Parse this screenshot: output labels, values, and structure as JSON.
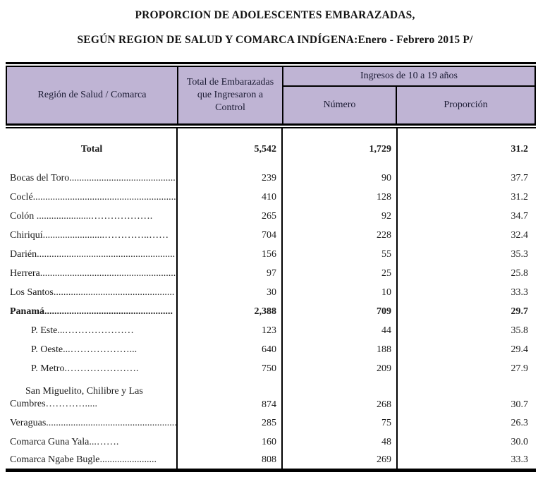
{
  "title": {
    "line1": "PROPORCION DE  ADOLESCENTES EMBARAZADAS,",
    "line2": "SEGÚN REGION DE SALUD Y COMARCA INDÍGENA:Enero - Febrero 2015 P/"
  },
  "colors": {
    "header_bg": "#bfb4d4",
    "border": "#000000",
    "text": "#1a1a1a"
  },
  "table": {
    "header": {
      "col_region": "Región de Salud / Comarca",
      "col_total": "Total de Embarazadas que Ingresaron a Control",
      "group": "Ingresos de 10 a 19 años",
      "sub_numero": "Número",
      "sub_proporcion": "Proporción"
    },
    "rows": [
      {
        "label": "Total",
        "total": "5,542",
        "numero": "1,729",
        "proporcion": "31.2"
      },
      {
        "label": "Bocas del Toro...........................................",
        "total": "239",
        "numero": "90",
        "proporcion": "37.7"
      },
      {
        "label": "Coclé..........................................................",
        "total": "410",
        "numero": "128",
        "proporcion": "31.2"
      },
      {
        "label": "Colón    ......................……………….",
        "total": "265",
        "numero": "92",
        "proporcion": "34.7"
      },
      {
        "label": "Chiriquí.........................…………..……",
        "total": "704",
        "numero": "228",
        "proporcion": "32.4"
      },
      {
        "label": "Darién........................................................",
        "total": "156",
        "numero": "55",
        "proporcion": "35.3"
      },
      {
        "label": "Herrera.......................................................",
        "total": "97",
        "numero": "25",
        "proporcion": "25.8"
      },
      {
        "label": "Los Santos.................................................",
        "total": "30",
        "numero": "10",
        "proporcion": "33.3"
      },
      {
        "label": "Panamá....................................................",
        "total": "2,388",
        "numero": "709",
        "proporcion": "29.7"
      },
      {
        "label": "P. Este...…………………",
        "total": "123",
        "numero": "44",
        "proporcion": "35.8"
      },
      {
        "label": "P. Oeste...………………...",
        "total": "640",
        "numero": "188",
        "proporcion": "29.4"
      },
      {
        "label": "P. Metro.………………….",
        "total": "750",
        "numero": "209",
        "proporcion": "27.9"
      },
      {
        "label": "San Miguelito, Chilibre y Las",
        "label2": "Cumbres………….....",
        "total": "874",
        "numero": "268",
        "proporcion": "30.7"
      },
      {
        "label": "Veraguas.....................................................",
        "total": "285",
        "numero": "75",
        "proporcion": "26.3"
      },
      {
        "label": "Comarca Guna Yala...…….",
        "total": "160",
        "numero": "48",
        "proporcion": "30.0"
      },
      {
        "label": "Comarca Ngabe Bugle.......................",
        "total": "808",
        "numero": "269",
        "proporcion": "33.3"
      }
    ]
  }
}
